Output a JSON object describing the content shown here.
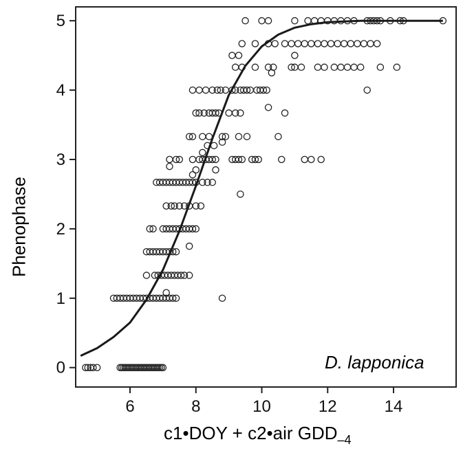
{
  "chart_data": {
    "type": "scatter",
    "title": "",
    "annotation": "D. lapponica",
    "xlabel": {
      "main": "c1•DOY + c2•air GDD",
      "subscript": "–4"
    },
    "ylabel": "Phenophase",
    "xlim": [
      4.35,
      15.9
    ],
    "ylim": [
      -0.28,
      5.2
    ],
    "xticks": [
      6,
      8,
      10,
      12,
      14
    ],
    "yticks": [
      0,
      1,
      2,
      3,
      4,
      5
    ],
    "grid": false,
    "legend": "none",
    "series": [
      {
        "type": "points",
        "marker": "open-circle",
        "color": "#222222",
        "points": [
          [
            4.65,
            0
          ],
          [
            4.8,
            0
          ],
          [
            4.88,
            0
          ],
          [
            5.0,
            0
          ],
          [
            4.72,
            0
          ],
          [
            5.7,
            0
          ],
          [
            5.75,
            0
          ],
          [
            5.8,
            0
          ],
          [
            5.85,
            0
          ],
          [
            5.9,
            0
          ],
          [
            5.95,
            0
          ],
          [
            6.0,
            0
          ],
          [
            6.05,
            0
          ],
          [
            6.1,
            0
          ],
          [
            6.15,
            0
          ],
          [
            6.2,
            0
          ],
          [
            6.25,
            0
          ],
          [
            6.3,
            0
          ],
          [
            6.35,
            0
          ],
          [
            6.4,
            0
          ],
          [
            6.45,
            0
          ],
          [
            6.5,
            0
          ],
          [
            6.55,
            0
          ],
          [
            6.6,
            0
          ],
          [
            6.65,
            0
          ],
          [
            6.7,
            0
          ],
          [
            6.75,
            0
          ],
          [
            6.8,
            0
          ],
          [
            6.85,
            0
          ],
          [
            6.9,
            0
          ],
          [
            6.95,
            0
          ],
          [
            7.0,
            0
          ],
          [
            5.5,
            1
          ],
          [
            5.6,
            1
          ],
          [
            5.7,
            1
          ],
          [
            5.8,
            1
          ],
          [
            5.9,
            1
          ],
          [
            6.0,
            1
          ],
          [
            6.1,
            1
          ],
          [
            6.2,
            1
          ],
          [
            6.3,
            1
          ],
          [
            6.4,
            1
          ],
          [
            6.5,
            1
          ],
          [
            6.6,
            1
          ],
          [
            6.7,
            1
          ],
          [
            6.8,
            1
          ],
          [
            6.9,
            1
          ],
          [
            7.0,
            1
          ],
          [
            7.1,
            1
          ],
          [
            7.2,
            1
          ],
          [
            7.3,
            1
          ],
          [
            7.4,
            1
          ],
          [
            7.1,
            1.08
          ],
          [
            8.8,
            1
          ],
          [
            6.5,
            1.33
          ],
          [
            6.75,
            1.33
          ],
          [
            6.85,
            1.33
          ],
          [
            6.95,
            1.33
          ],
          [
            7.05,
            1.33
          ],
          [
            7.15,
            1.33
          ],
          [
            7.25,
            1.33
          ],
          [
            7.35,
            1.33
          ],
          [
            7.45,
            1.33
          ],
          [
            7.55,
            1.33
          ],
          [
            7.65,
            1.33
          ],
          [
            7.8,
            1.33
          ],
          [
            6.5,
            1.67
          ],
          [
            6.6,
            1.67
          ],
          [
            6.7,
            1.67
          ],
          [
            6.8,
            1.67
          ],
          [
            6.9,
            1.67
          ],
          [
            7.0,
            1.67
          ],
          [
            7.1,
            1.67
          ],
          [
            7.2,
            1.67
          ],
          [
            7.3,
            1.67
          ],
          [
            7.4,
            1.67
          ],
          [
            7.8,
            1.75
          ],
          [
            6.6,
            2
          ],
          [
            6.7,
            2
          ],
          [
            7.0,
            2
          ],
          [
            7.1,
            2
          ],
          [
            7.2,
            2
          ],
          [
            7.3,
            2
          ],
          [
            7.4,
            2
          ],
          [
            7.5,
            2
          ],
          [
            7.6,
            2
          ],
          [
            7.7,
            2
          ],
          [
            7.8,
            2
          ],
          [
            7.9,
            2
          ],
          [
            8.0,
            2
          ],
          [
            7.1,
            2.33
          ],
          [
            7.25,
            2.33
          ],
          [
            7.35,
            2.33
          ],
          [
            7.5,
            2.33
          ],
          [
            7.65,
            2.33
          ],
          [
            7.8,
            2.33
          ],
          [
            8.0,
            2.33
          ],
          [
            8.15,
            2.33
          ],
          [
            6.8,
            2.67
          ],
          [
            6.9,
            2.67
          ],
          [
            7.0,
            2.67
          ],
          [
            7.1,
            2.67
          ],
          [
            7.2,
            2.67
          ],
          [
            7.3,
            2.67
          ],
          [
            7.4,
            2.67
          ],
          [
            7.5,
            2.67
          ],
          [
            7.6,
            2.67
          ],
          [
            7.7,
            2.67
          ],
          [
            7.8,
            2.67
          ],
          [
            7.9,
            2.67
          ],
          [
            8.0,
            2.67
          ],
          [
            8.2,
            2.67
          ],
          [
            8.35,
            2.67
          ],
          [
            8.5,
            2.67
          ],
          [
            7.9,
            2.78
          ],
          [
            8.0,
            2.85
          ],
          [
            7.2,
            2.9
          ],
          [
            8.6,
            2.85
          ],
          [
            7.2,
            3
          ],
          [
            7.4,
            3
          ],
          [
            7.5,
            3
          ],
          [
            7.9,
            3
          ],
          [
            8.1,
            3
          ],
          [
            8.2,
            3
          ],
          [
            8.3,
            3
          ],
          [
            8.4,
            3
          ],
          [
            8.5,
            3
          ],
          [
            8.6,
            3
          ],
          [
            9.1,
            3
          ],
          [
            9.2,
            3
          ],
          [
            9.3,
            3
          ],
          [
            9.4,
            3
          ],
          [
            9.7,
            3
          ],
          [
            9.8,
            3
          ],
          [
            9.9,
            3
          ],
          [
            10.6,
            3
          ],
          [
            11.3,
            3
          ],
          [
            11.5,
            3
          ],
          [
            11.8,
            3
          ],
          [
            8.2,
            3.1
          ],
          [
            8.35,
            3.2
          ],
          [
            8.55,
            3.2
          ],
          [
            8.8,
            3.25
          ],
          [
            9.35,
            2.5
          ],
          [
            7.8,
            3.33
          ],
          [
            7.9,
            3.33
          ],
          [
            8.2,
            3.33
          ],
          [
            8.4,
            3.33
          ],
          [
            8.8,
            3.33
          ],
          [
            8.9,
            3.33
          ],
          [
            9.3,
            3.33
          ],
          [
            9.55,
            3.33
          ],
          [
            10.5,
            3.33
          ],
          [
            8.0,
            3.67
          ],
          [
            8.1,
            3.67
          ],
          [
            8.25,
            3.67
          ],
          [
            8.4,
            3.67
          ],
          [
            8.5,
            3.67
          ],
          [
            8.6,
            3.67
          ],
          [
            8.7,
            3.67
          ],
          [
            9.0,
            3.67
          ],
          [
            9.2,
            3.67
          ],
          [
            9.35,
            3.67
          ],
          [
            10.7,
            3.67
          ],
          [
            7.9,
            4
          ],
          [
            8.1,
            4
          ],
          [
            8.3,
            4
          ],
          [
            8.5,
            4
          ],
          [
            8.65,
            4
          ],
          [
            8.75,
            4
          ],
          [
            8.9,
            4
          ],
          [
            9.1,
            4
          ],
          [
            9.2,
            4
          ],
          [
            9.35,
            4
          ],
          [
            9.45,
            4
          ],
          [
            9.55,
            4
          ],
          [
            9.65,
            4
          ],
          [
            9.85,
            4
          ],
          [
            9.95,
            4
          ],
          [
            10.05,
            4
          ],
          [
            10.15,
            4
          ],
          [
            10.2,
            3.75
          ],
          [
            13.2,
            4
          ],
          [
            9.2,
            4.33
          ],
          [
            9.4,
            4.33
          ],
          [
            9.8,
            4.33
          ],
          [
            10.2,
            4.33
          ],
          [
            10.35,
            4.33
          ],
          [
            10.9,
            4.33
          ],
          [
            11.0,
            4.33
          ],
          [
            11.2,
            4.33
          ],
          [
            11.7,
            4.33
          ],
          [
            11.9,
            4.33
          ],
          [
            12.2,
            4.33
          ],
          [
            12.4,
            4.33
          ],
          [
            12.6,
            4.33
          ],
          [
            12.8,
            4.33
          ],
          [
            13.0,
            4.33
          ],
          [
            13.6,
            4.33
          ],
          [
            14.1,
            4.33
          ],
          [
            9.3,
            4.5
          ],
          [
            9.1,
            4.5
          ],
          [
            10.3,
            4.25
          ],
          [
            11.0,
            4.5
          ],
          [
            9.4,
            4.67
          ],
          [
            9.8,
            4.67
          ],
          [
            10.2,
            4.67
          ],
          [
            10.4,
            4.67
          ],
          [
            10.7,
            4.67
          ],
          [
            10.9,
            4.67
          ],
          [
            11.1,
            4.67
          ],
          [
            11.3,
            4.67
          ],
          [
            11.5,
            4.67
          ],
          [
            11.7,
            4.67
          ],
          [
            11.9,
            4.67
          ],
          [
            12.1,
            4.67
          ],
          [
            12.3,
            4.67
          ],
          [
            12.5,
            4.67
          ],
          [
            12.7,
            4.67
          ],
          [
            12.9,
            4.67
          ],
          [
            13.1,
            4.67
          ],
          [
            13.3,
            4.67
          ],
          [
            13.5,
            4.67
          ],
          [
            9.5,
            5
          ],
          [
            10.0,
            5
          ],
          [
            10.2,
            5
          ],
          [
            11.0,
            5
          ],
          [
            11.4,
            5
          ],
          [
            11.6,
            5
          ],
          [
            11.8,
            5
          ],
          [
            12.0,
            5
          ],
          [
            12.2,
            5
          ],
          [
            12.4,
            5
          ],
          [
            12.6,
            5
          ],
          [
            12.8,
            5
          ],
          [
            13.2,
            5
          ],
          [
            13.3,
            5
          ],
          [
            13.4,
            5
          ],
          [
            13.5,
            5
          ],
          [
            13.6,
            5
          ],
          [
            13.9,
            5
          ],
          [
            14.2,
            5
          ],
          [
            14.3,
            5
          ],
          [
            15.5,
            5
          ]
        ]
      },
      {
        "type": "curve",
        "color": "#1a1a1a",
        "points": [
          [
            4.5,
            0.17
          ],
          [
            5.0,
            0.28
          ],
          [
            5.5,
            0.44
          ],
          [
            6.0,
            0.65
          ],
          [
            6.5,
            0.98
          ],
          [
            7.0,
            1.41
          ],
          [
            7.5,
            1.97
          ],
          [
            8.0,
            2.62
          ],
          [
            8.5,
            3.3
          ],
          [
            9.0,
            3.93
          ],
          [
            9.5,
            4.35
          ],
          [
            10.0,
            4.63
          ],
          [
            10.5,
            4.8
          ],
          [
            11.0,
            4.9
          ],
          [
            11.5,
            4.95
          ],
          [
            12.0,
            4.98
          ],
          [
            12.5,
            4.99
          ],
          [
            13.0,
            5.0
          ],
          [
            14.0,
            5.0
          ],
          [
            15.5,
            5.0
          ]
        ]
      }
    ]
  }
}
